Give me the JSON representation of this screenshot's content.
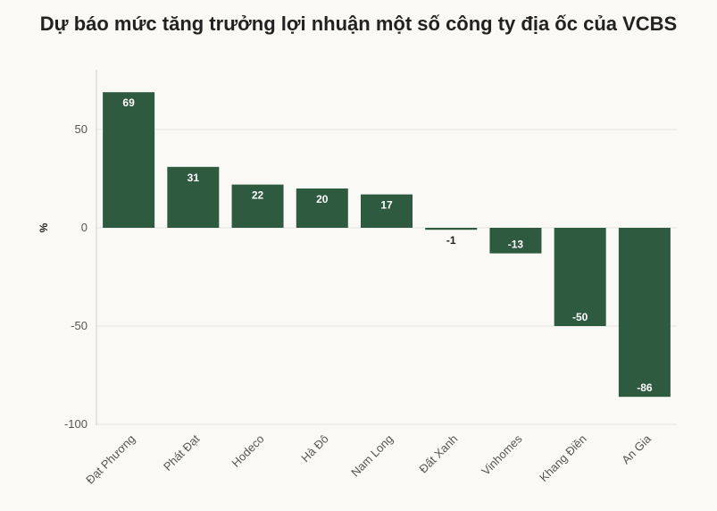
{
  "chart_data": {
    "type": "bar",
    "title": "Dự báo mức tăng trưởng lợi nhuận một số công ty địa ốc của VCBS",
    "xlabel": "",
    "ylabel": "%",
    "ylim": [
      -100,
      80
    ],
    "yticks": [
      50,
      0,
      -50,
      -100
    ],
    "grid": true,
    "categories": [
      "Đạt Phương",
      "Phát Đạt",
      "Hodeco",
      "Hà Đô",
      "Nam Long",
      "Đất Xanh",
      "Vinhomes",
      "Khang Điền",
      "An Gia"
    ],
    "values": [
      69,
      31,
      22,
      20,
      17,
      -1,
      -13,
      -50,
      -86
    ],
    "bar_color": "#2e5a40"
  }
}
